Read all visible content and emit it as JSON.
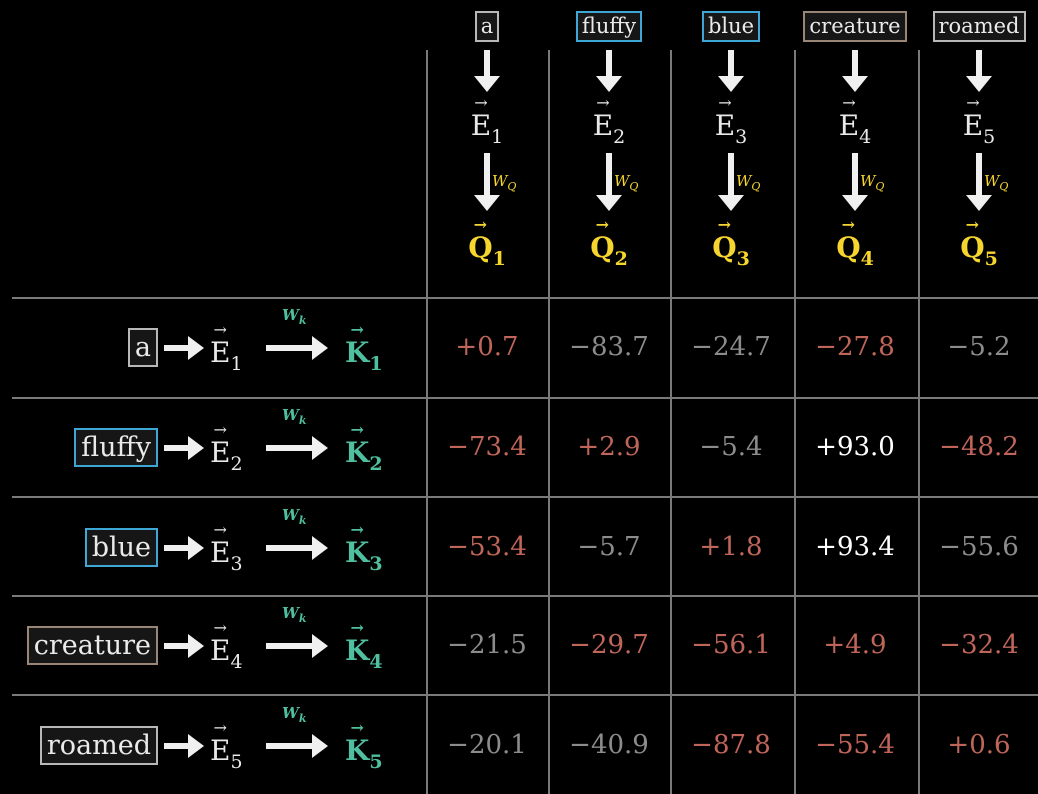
{
  "columns": [
    {
      "token": "a",
      "e_label": "E",
      "e_sub": "1",
      "w_label": "W",
      "w_sub": "Q",
      "q_label": "Q",
      "q_sub": "1",
      "border": "#b8b8b8"
    },
    {
      "token": "fluffy",
      "e_label": "E",
      "e_sub": "2",
      "w_label": "W",
      "w_sub": "Q",
      "q_label": "Q",
      "q_sub": "2",
      "border": "#3fa7d6"
    },
    {
      "token": "blue",
      "e_label": "E",
      "e_sub": "3",
      "w_label": "W",
      "w_sub": "Q",
      "q_label": "Q",
      "q_sub": "3",
      "border": "#3fa7d6"
    },
    {
      "token": "creature",
      "e_label": "E",
      "e_sub": "4",
      "w_label": "W",
      "w_sub": "Q",
      "q_label": "Q",
      "q_sub": "4",
      "border": "#9a8676"
    },
    {
      "token": "roamed",
      "e_label": "E",
      "e_sub": "5",
      "w_label": "W",
      "w_sub": "Q",
      "q_label": "Q",
      "q_sub": "5",
      "border": "#b8b8b8"
    }
  ],
  "rows": [
    {
      "token": "a",
      "e_label": "E",
      "e_sub": "1",
      "w_label": "W",
      "w_sub": "k",
      "k_label": "K",
      "k_sub": "1",
      "border": "#b8b8b8",
      "cells": [
        {
          "v": "+0.7",
          "c": "#c0655a"
        },
        {
          "v": "−83.7",
          "c": "#8c8c8c"
        },
        {
          "v": "−24.7",
          "c": "#8c8c8c"
        },
        {
          "v": "−27.8",
          "c": "#c0655a"
        },
        {
          "v": "−5.2",
          "c": "#8c8c8c"
        }
      ]
    },
    {
      "token": "fluffy",
      "e_label": "E",
      "e_sub": "2",
      "w_label": "W",
      "w_sub": "k",
      "k_label": "K",
      "k_sub": "2",
      "border": "#3fa7d6",
      "cells": [
        {
          "v": "−73.4",
          "c": "#c0655a"
        },
        {
          "v": "+2.9",
          "c": "#c0655a"
        },
        {
          "v": "−5.4",
          "c": "#8c8c8c"
        },
        {
          "v": "+93.0",
          "c": "#ffffff"
        },
        {
          "v": "−48.2",
          "c": "#c0655a"
        }
      ]
    },
    {
      "token": "blue",
      "e_label": "E",
      "e_sub": "3",
      "w_label": "W",
      "w_sub": "k",
      "k_label": "K",
      "k_sub": "3",
      "border": "#3fa7d6",
      "cells": [
        {
          "v": "−53.4",
          "c": "#c0655a"
        },
        {
          "v": "−5.7",
          "c": "#8c8c8c"
        },
        {
          "v": "+1.8",
          "c": "#c0655a"
        },
        {
          "v": "+93.4",
          "c": "#ffffff"
        },
        {
          "v": "−55.6",
          "c": "#8c8c8c"
        }
      ]
    },
    {
      "token": "creature",
      "e_label": "E",
      "e_sub": "4",
      "w_label": "W",
      "w_sub": "k",
      "k_label": "K",
      "k_sub": "4",
      "border": "#9a8676",
      "cells": [
        {
          "v": "−21.5",
          "c": "#8c8c8c"
        },
        {
          "v": "−29.7",
          "c": "#c0655a"
        },
        {
          "v": "−56.1",
          "c": "#c0655a"
        },
        {
          "v": "+4.9",
          "c": "#c0655a"
        },
        {
          "v": "−32.4",
          "c": "#c0655a"
        }
      ]
    },
    {
      "token": "roamed",
      "e_label": "E",
      "e_sub": "5",
      "w_label": "W",
      "w_sub": "k",
      "k_label": "K",
      "k_sub": "5",
      "border": "#b8b8b8",
      "cells": [
        {
          "v": "−20.1",
          "c": "#8c8c8c"
        },
        {
          "v": "−40.9",
          "c": "#8c8c8c"
        },
        {
          "v": "−87.8",
          "c": "#c0655a"
        },
        {
          "v": "−55.4",
          "c": "#c0655a"
        },
        {
          "v": "+0.6",
          "c": "#c0655a"
        }
      ]
    }
  ]
}
